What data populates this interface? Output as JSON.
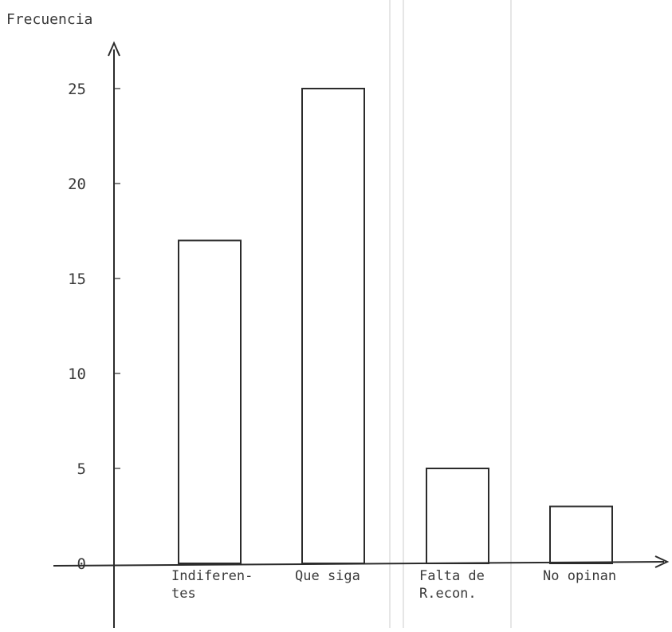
{
  "chart_data": {
    "type": "bar",
    "ylabel": "Frecuencia",
    "xlabel": "",
    "title": "",
    "categories": [
      [
        "Indiferen-",
        "tes"
      ],
      [
        "Que siga"
      ],
      [
        "Falta de",
        "R.econ."
      ],
      [
        "No opinan"
      ]
    ],
    "values": [
      17,
      25,
      5,
      3
    ],
    "ylim": [
      0,
      26
    ],
    "yticks": [
      0,
      5,
      10,
      15,
      20,
      25
    ],
    "grid": false,
    "legend": "none"
  }
}
